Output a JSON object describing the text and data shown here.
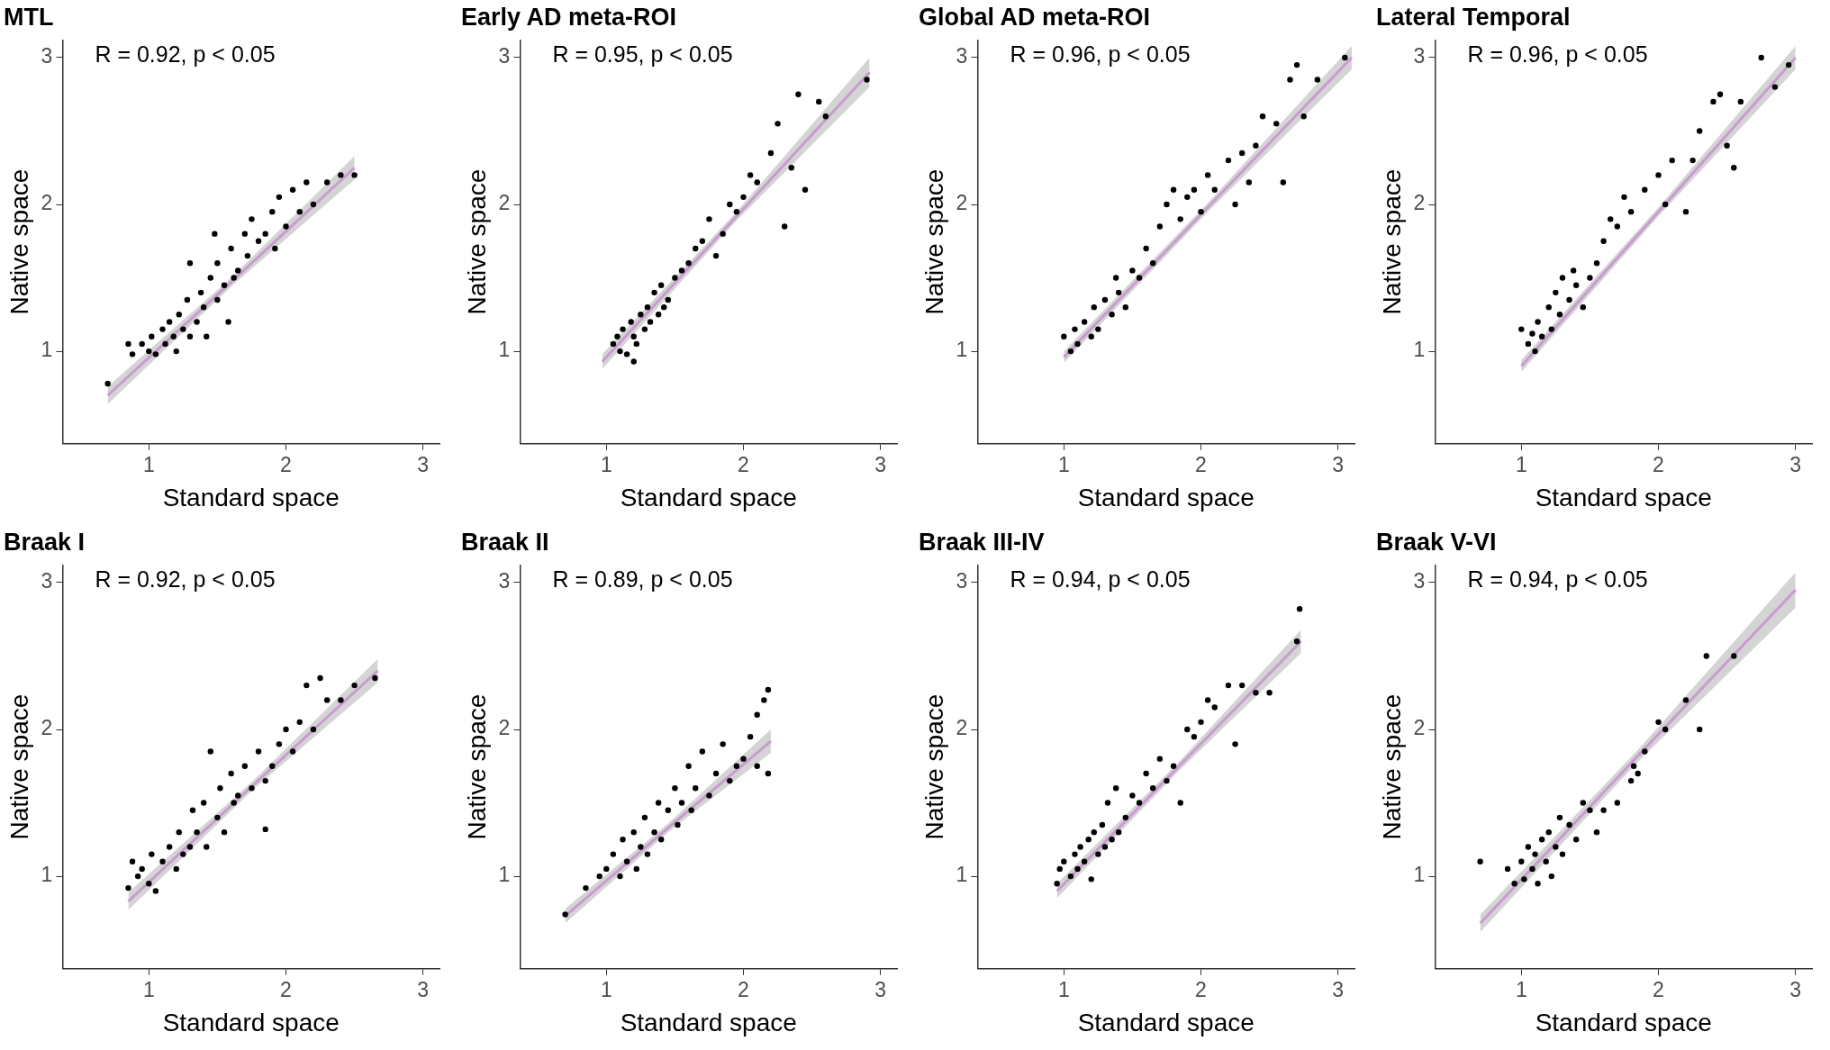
{
  "chart_data": [
    {
      "type": "scatter",
      "title": "MTL",
      "xlabel": "Standard space",
      "ylabel": "Native space",
      "annotations": [
        "R = 0.92, p < 0.05"
      ],
      "xlim": [
        0.37,
        3.12
      ],
      "ylim": [
        0.37,
        3.12
      ],
      "xticks": [
        1,
        2,
        3
      ],
      "yticks": [
        1,
        2,
        3
      ],
      "series": [
        {
          "color": "#000000",
          "marker": "circle",
          "x": [
            0.7,
            0.85,
            0.88,
            0.95,
            1.0,
            1.02,
            1.05,
            1.1,
            1.12,
            1.15,
            1.18,
            1.2,
            1.22,
            1.25,
            1.28,
            1.3,
            1.3,
            1.35,
            1.38,
            1.4,
            1.42,
            1.45,
            1.48,
            1.5,
            1.5,
            1.55,
            1.58,
            1.6,
            1.62,
            1.65,
            1.7,
            1.72,
            1.75,
            1.8,
            1.85,
            1.9,
            1.92,
            1.95,
            2.0,
            2.05,
            2.1,
            2.15,
            2.2,
            2.3,
            2.4,
            2.5
          ],
          "values": [
            0.78,
            1.05,
            0.98,
            1.05,
            1.0,
            1.1,
            0.98,
            1.15,
            1.05,
            1.2,
            1.1,
            1.0,
            1.25,
            1.15,
            1.35,
            1.1,
            1.6,
            1.2,
            1.4,
            1.3,
            1.1,
            1.5,
            1.8,
            1.35,
            1.6,
            1.45,
            1.2,
            1.7,
            1.5,
            1.55,
            1.8,
            1.65,
            1.9,
            1.75,
            1.8,
            1.95,
            1.7,
            2.05,
            1.85,
            2.1,
            1.95,
            2.15,
            2.0,
            2.15,
            2.2,
            2.2
          ]
        },
        {
          "type": "line",
          "marker": "none",
          "color": "#c99bd0",
          "x": [
            0.7,
            1.6,
            2.5
          ],
          "values": [
            0.7,
            1.47,
            2.25
          ],
          "lower": [
            0.64,
            1.44,
            2.17
          ],
          "upper": [
            0.76,
            1.5,
            2.33
          ]
        }
      ]
    },
    {
      "type": "scatter",
      "title": "Early AD meta-ROI",
      "xlabel": "Standard space",
      "ylabel": "Native space",
      "annotations": [
        "R = 0.95, p < 0.05"
      ],
      "xlim": [
        0.37,
        3.12
      ],
      "ylim": [
        0.37,
        3.12
      ],
      "xticks": [
        1,
        2,
        3
      ],
      "yticks": [
        1,
        2,
        3
      ],
      "series": [
        {
          "color": "#000000",
          "marker": "circle",
          "x": [
            1.05,
            1.08,
            1.1,
            1.12,
            1.15,
            1.18,
            1.2,
            1.22,
            1.25,
            1.28,
            1.3,
            1.32,
            1.35,
            1.38,
            1.4,
            1.42,
            1.45,
            1.5,
            1.55,
            1.6,
            1.65,
            1.7,
            1.75,
            1.8,
            1.85,
            1.9,
            1.95,
            2.0,
            2.05,
            2.1,
            2.2,
            2.25,
            2.3,
            2.35,
            2.4,
            2.45,
            2.55,
            2.6,
            2.9,
            1.2
          ],
          "values": [
            1.05,
            1.1,
            1.0,
            1.15,
            0.98,
            1.2,
            1.1,
            1.05,
            1.25,
            1.15,
            1.3,
            1.2,
            1.4,
            1.25,
            1.45,
            1.3,
            1.35,
            1.5,
            1.55,
            1.6,
            1.7,
            1.75,
            1.9,
            1.65,
            1.8,
            2.0,
            1.95,
            2.05,
            2.2,
            2.15,
            2.35,
            2.55,
            1.85,
            2.25,
            2.75,
            2.1,
            2.7,
            2.6,
            2.85,
            0.93
          ]
        },
        {
          "type": "line",
          "marker": "none",
          "color": "#c99bd0",
          "x": [
            0.97,
            1.94,
            2.92
          ],
          "values": [
            0.93,
            1.91,
            2.9
          ],
          "lower": [
            0.88,
            1.88,
            2.8
          ],
          "upper": [
            0.98,
            1.94,
            3.0
          ]
        }
      ]
    },
    {
      "type": "scatter",
      "title": "Global AD meta-ROI",
      "xlabel": "Standard space",
      "ylabel": "Native space",
      "annotations": [
        "R = 0.96, p < 0.05"
      ],
      "xlim": [
        0.37,
        3.12
      ],
      "ylim": [
        0.37,
        3.12
      ],
      "xticks": [
        1,
        2,
        3
      ],
      "yticks": [
        1,
        2,
        3
      ],
      "series": [
        {
          "color": "#000000",
          "marker": "circle",
          "x": [
            1.0,
            1.05,
            1.08,
            1.1,
            1.15,
            1.2,
            1.22,
            1.25,
            1.3,
            1.35,
            1.38,
            1.4,
            1.45,
            1.5,
            1.55,
            1.6,
            1.65,
            1.7,
            1.75,
            1.8,
            1.85,
            1.9,
            1.95,
            2.0,
            2.05,
            2.1,
            2.2,
            2.25,
            2.3,
            2.35,
            2.4,
            2.45,
            2.55,
            2.6,
            2.65,
            2.7,
            2.75,
            2.85,
            3.05
          ],
          "values": [
            1.1,
            1.0,
            1.15,
            1.05,
            1.2,
            1.1,
            1.3,
            1.15,
            1.35,
            1.25,
            1.5,
            1.4,
            1.3,
            1.55,
            1.5,
            1.7,
            1.6,
            1.85,
            2.0,
            2.1,
            1.9,
            2.05,
            2.1,
            1.95,
            2.2,
            2.1,
            2.3,
            2.0,
            2.35,
            2.15,
            2.4,
            2.6,
            2.55,
            2.15,
            2.85,
            2.95,
            2.6,
            2.85,
            3.0
          ]
        },
        {
          "type": "line",
          "marker": "none",
          "color": "#c99bd0",
          "x": [
            1.0,
            2.05,
            3.1
          ],
          "values": [
            0.96,
            1.98,
            3.0
          ],
          "lower": [
            0.92,
            1.95,
            2.92
          ],
          "upper": [
            1.0,
            2.01,
            3.08
          ]
        }
      ]
    },
    {
      "type": "scatter",
      "title": "Lateral Temporal",
      "xlabel": "Standard space",
      "ylabel": "Native space",
      "annotations": [
        "R = 0.96, p < 0.05"
      ],
      "xlim": [
        0.37,
        3.12
      ],
      "ylim": [
        0.37,
        3.12
      ],
      "xticks": [
        1,
        2,
        3
      ],
      "yticks": [
        1,
        2,
        3
      ],
      "series": [
        {
          "color": "#000000",
          "marker": "circle",
          "x": [
            1.0,
            1.05,
            1.08,
            1.1,
            1.12,
            1.15,
            1.2,
            1.22,
            1.25,
            1.28,
            1.3,
            1.35,
            1.38,
            1.4,
            1.45,
            1.5,
            1.55,
            1.6,
            1.65,
            1.7,
            1.75,
            1.8,
            1.9,
            2.0,
            2.05,
            2.1,
            2.2,
            2.25,
            2.3,
            2.4,
            2.45,
            2.5,
            2.55,
            2.6,
            2.75,
            2.95,
            2.85
          ],
          "values": [
            1.15,
            1.05,
            1.12,
            1.0,
            1.2,
            1.1,
            1.3,
            1.15,
            1.4,
            1.25,
            1.5,
            1.35,
            1.55,
            1.45,
            1.3,
            1.5,
            1.6,
            1.75,
            1.9,
            1.85,
            2.05,
            1.95,
            2.1,
            2.2,
            2.0,
            2.3,
            1.95,
            2.3,
            2.5,
            2.7,
            2.75,
            2.4,
            2.25,
            2.7,
            3.0,
            2.95,
            2.8
          ]
        },
        {
          "type": "line",
          "marker": "none",
          "color": "#c99bd0",
          "x": [
            1.0,
            2.0,
            3.0
          ],
          "values": [
            0.9,
            1.95,
            3.0
          ],
          "lower": [
            0.86,
            1.92,
            2.92
          ],
          "upper": [
            0.94,
            1.98,
            3.08
          ]
        }
      ]
    },
    {
      "type": "scatter",
      "title": "Braak I",
      "xlabel": "Standard space",
      "ylabel": "Native space",
      "annotations": [
        "R = 0.92, p < 0.05"
      ],
      "xlim": [
        0.37,
        3.12
      ],
      "ylim": [
        0.37,
        3.12
      ],
      "xticks": [
        1,
        2,
        3
      ],
      "yticks": [
        1,
        2,
        3
      ],
      "series": [
        {
          "color": "#000000",
          "marker": "circle",
          "x": [
            0.85,
            0.88,
            0.92,
            0.95,
            1.0,
            1.02,
            1.05,
            1.1,
            1.15,
            1.2,
            1.22,
            1.25,
            1.3,
            1.32,
            1.35,
            1.4,
            1.42,
            1.45,
            1.5,
            1.52,
            1.55,
            1.6,
            1.62,
            1.65,
            1.7,
            1.75,
            1.8,
            1.85,
            1.9,
            1.95,
            2.0,
            2.05,
            2.1,
            2.15,
            2.2,
            2.25,
            2.3,
            2.4,
            2.5,
            2.65,
            1.85
          ],
          "values": [
            0.92,
            1.1,
            1.0,
            1.05,
            0.95,
            1.15,
            0.9,
            1.1,
            1.2,
            1.05,
            1.3,
            1.15,
            1.2,
            1.45,
            1.3,
            1.5,
            1.2,
            1.85,
            1.4,
            1.6,
            1.3,
            1.7,
            1.5,
            1.55,
            1.75,
            1.6,
            1.85,
            1.65,
            1.75,
            1.9,
            2.0,
            1.85,
            2.05,
            2.3,
            2.0,
            2.35,
            2.2,
            2.2,
            2.3,
            2.35,
            1.32
          ]
        },
        {
          "type": "line",
          "marker": "none",
          "color": "#c99bd0",
          "x": [
            0.85,
            1.76,
            2.67
          ],
          "values": [
            0.83,
            1.62,
            2.4
          ],
          "lower": [
            0.77,
            1.59,
            2.32
          ],
          "upper": [
            0.89,
            1.65,
            2.48
          ]
        }
      ]
    },
    {
      "type": "scatter",
      "title": "Braak II",
      "xlabel": "Standard space",
      "ylabel": "Native space",
      "annotations": [
        "R = 0.89, p < 0.05"
      ],
      "xlim": [
        0.37,
        3.12
      ],
      "ylim": [
        0.37,
        3.12
      ],
      "xticks": [
        1,
        2,
        3
      ],
      "yticks": [
        1,
        2,
        3
      ],
      "series": [
        {
          "color": "#000000",
          "marker": "circle",
          "x": [
            0.7,
            0.85,
            0.95,
            1.0,
            1.05,
            1.1,
            1.12,
            1.15,
            1.2,
            1.22,
            1.25,
            1.28,
            1.3,
            1.35,
            1.38,
            1.4,
            1.45,
            1.5,
            1.52,
            1.55,
            1.6,
            1.62,
            1.65,
            1.7,
            1.75,
            1.8,
            1.85,
            1.9,
            1.95,
            2.0,
            2.05,
            2.1,
            2.15,
            2.18,
            2.18,
            2.1
          ],
          "values": [
            0.74,
            0.92,
            1.0,
            1.05,
            1.15,
            1.0,
            1.25,
            1.1,
            1.3,
            1.05,
            1.2,
            1.4,
            1.15,
            1.3,
            1.5,
            1.25,
            1.45,
            1.6,
            1.35,
            1.5,
            1.75,
            1.45,
            1.6,
            1.85,
            1.55,
            1.7,
            1.9,
            1.65,
            1.75,
            1.8,
            1.95,
            2.1,
            2.2,
            2.27,
            1.7,
            1.75
          ]
        },
        {
          "type": "line",
          "marker": "none",
          "color": "#c99bd0",
          "x": [
            0.7,
            1.45,
            2.2
          ],
          "values": [
            0.73,
            1.33,
            1.92
          ],
          "lower": [
            0.68,
            1.3,
            1.84
          ],
          "upper": [
            0.78,
            1.36,
            2.0
          ]
        }
      ]
    },
    {
      "type": "scatter",
      "title": "Braak III-IV",
      "xlabel": "Standard space",
      "ylabel": "Native space",
      "annotations": [
        "R = 0.94, p < 0.05"
      ],
      "xlim": [
        0.37,
        3.12
      ],
      "ylim": [
        0.37,
        3.12
      ],
      "xticks": [
        1,
        2,
        3
      ],
      "yticks": [
        1,
        2,
        3
      ],
      "series": [
        {
          "color": "#000000",
          "marker": "circle",
          "x": [
            0.95,
            0.97,
            1.0,
            1.05,
            1.08,
            1.1,
            1.12,
            1.15,
            1.18,
            1.2,
            1.22,
            1.25,
            1.28,
            1.3,
            1.32,
            1.35,
            1.38,
            1.4,
            1.45,
            1.5,
            1.55,
            1.6,
            1.65,
            1.7,
            1.75,
            1.8,
            1.85,
            1.9,
            1.95,
            2.0,
            2.05,
            2.1,
            2.2,
            2.25,
            2.3,
            2.4,
            2.5,
            2.7,
            2.72
          ],
          "values": [
            0.95,
            1.05,
            1.1,
            1.0,
            1.15,
            1.05,
            1.2,
            1.1,
            1.25,
            0.98,
            1.3,
            1.15,
            1.35,
            1.2,
            1.5,
            1.25,
            1.6,
            1.3,
            1.4,
            1.55,
            1.5,
            1.7,
            1.6,
            1.8,
            1.65,
            1.75,
            1.5,
            2.0,
            1.95,
            2.05,
            2.2,
            2.15,
            2.3,
            1.9,
            2.3,
            2.25,
            2.25,
            2.6,
            2.82
          ]
        },
        {
          "type": "line",
          "marker": "none",
          "color": "#c99bd0",
          "x": [
            0.95,
            1.84,
            2.73
          ],
          "values": [
            0.9,
            1.75,
            2.6
          ],
          "lower": [
            0.85,
            1.72,
            2.52
          ],
          "upper": [
            0.95,
            1.78,
            2.68
          ]
        }
      ]
    },
    {
      "type": "scatter",
      "title": "Braak V-VI",
      "xlabel": "Standard space",
      "ylabel": "Native space",
      "annotations": [
        "R = 0.94, p < 0.05"
      ],
      "xlim": [
        0.37,
        3.12
      ],
      "ylim": [
        0.37,
        3.12
      ],
      "xticks": [
        1,
        2,
        3
      ],
      "yticks": [
        1,
        2,
        3
      ],
      "series": [
        {
          "color": "#000000",
          "marker": "circle",
          "x": [
            0.7,
            0.9,
            0.95,
            1.0,
            1.02,
            1.05,
            1.08,
            1.1,
            1.12,
            1.15,
            1.18,
            1.2,
            1.22,
            1.25,
            1.28,
            1.3,
            1.35,
            1.4,
            1.45,
            1.5,
            1.55,
            1.6,
            1.7,
            1.8,
            1.82,
            1.85,
            1.9,
            2.0,
            2.05,
            2.2,
            2.3,
            2.35,
            2.55
          ],
          "values": [
            1.1,
            1.05,
            0.95,
            1.1,
            0.98,
            1.2,
            1.05,
            1.15,
            0.95,
            1.25,
            1.1,
            1.3,
            1.0,
            1.2,
            1.4,
            1.15,
            1.35,
            1.25,
            1.5,
            1.45,
            1.3,
            1.45,
            1.5,
            1.65,
            1.75,
            1.7,
            1.85,
            2.05,
            2.0,
            2.2,
            2.0,
            2.5,
            2.5
          ]
        },
        {
          "type": "line",
          "marker": "none",
          "color": "#c99bd0",
          "x": [
            0.7,
            1.85,
            3.0
          ],
          "values": [
            0.68,
            1.82,
            2.95
          ],
          "lower": [
            0.62,
            1.78,
            2.83
          ],
          "upper": [
            0.74,
            1.86,
            3.07
          ]
        }
      ]
    }
  ]
}
